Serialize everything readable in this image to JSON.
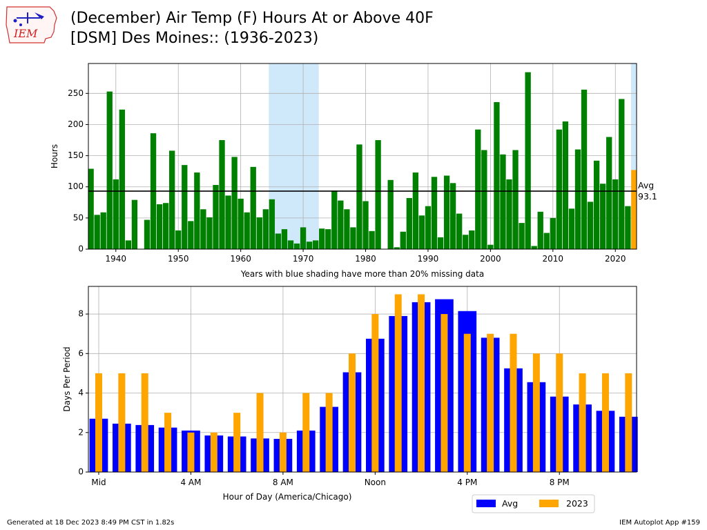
{
  "title_lines": [
    "(December) Air Temp (F) Hours At or Above 40F",
    "[DSM] Des Moines:: (1936-2023)"
  ],
  "logo_text": "IEM",
  "footer_left": "Generated at 18 Dec 2023 8:49 PM CST in 1.82s",
  "footer_right": "IEM Autoplot App #159",
  "colors": {
    "yearly_bar": "#008000",
    "current_year_bar": "#FFA500",
    "missing_shade": "#CFE8FA",
    "avg_line": "#000000",
    "hourly_avg": "#0000FF",
    "hourly_current": "#FFA500",
    "grid": "#b0b0b0"
  },
  "chart_data": [
    {
      "type": "bar",
      "x": [
        1936,
        1937,
        1938,
        1939,
        1940,
        1941,
        1942,
        1943,
        1944,
        1945,
        1946,
        1947,
        1948,
        1949,
        1950,
        1951,
        1952,
        1953,
        1954,
        1955,
        1956,
        1957,
        1958,
        1959,
        1960,
        1961,
        1962,
        1963,
        1964,
        1965,
        1966,
        1967,
        1968,
        1969,
        1970,
        1971,
        1972,
        1973,
        1974,
        1975,
        1976,
        1977,
        1978,
        1979,
        1980,
        1981,
        1982,
        1983,
        1984,
        1985,
        1986,
        1987,
        1988,
        1989,
        1990,
        1991,
        1992,
        1993,
        1994,
        1995,
        1996,
        1997,
        1998,
        1999,
        2000,
        2001,
        2002,
        2003,
        2004,
        2005,
        2006,
        2007,
        2008,
        2009,
        2010,
        2011,
        2012,
        2013,
        2014,
        2015,
        2016,
        2017,
        2018,
        2019,
        2020,
        2021,
        2022,
        2023
      ],
      "values": [
        129,
        55,
        59,
        253,
        112,
        224,
        14,
        79,
        0,
        47,
        186,
        72,
        74,
        158,
        30,
        135,
        45,
        123,
        64,
        51,
        103,
        175,
        86,
        148,
        81,
        59,
        132,
        51,
        64,
        80,
        25,
        32,
        14,
        9,
        35,
        12,
        14,
        33,
        32,
        94,
        78,
        64,
        35,
        168,
        77,
        29,
        175,
        0,
        111,
        3,
        28,
        82,
        123,
        54,
        69,
        116,
        19,
        118,
        106,
        57,
        23,
        30,
        192,
        159,
        7,
        236,
        152,
        112,
        159,
        42,
        284,
        5,
        60,
        26,
        50,
        192,
        205,
        65,
        160,
        256,
        76,
        142,
        105,
        180,
        112,
        241,
        69,
        127
      ],
      "highlight_x": 2023,
      "missing_ranges": [
        [
          1965,
          1972
        ],
        [
          2023,
          2023
        ]
      ],
      "average": 93.1,
      "avg_label": "Avg",
      "avg_value_label": "93.1",
      "ylabel": "Hours",
      "xlabel": "Years with blue shading have more than 20% missing data",
      "ylim": [
        0,
        298
      ],
      "xlim": [
        1935.6,
        2023.4
      ],
      "yticks": [
        0,
        50,
        100,
        150,
        200,
        250
      ],
      "xticks": [
        1940,
        1950,
        1960,
        1970,
        1980,
        1990,
        2000,
        2010,
        2020
      ],
      "grid": true
    },
    {
      "type": "bar",
      "hours": [
        0,
        1,
        2,
        3,
        4,
        5,
        6,
        7,
        8,
        9,
        10,
        11,
        12,
        13,
        14,
        15,
        16,
        17,
        18,
        19,
        20,
        21,
        22,
        23
      ],
      "series": [
        {
          "name": "Avg",
          "values": [
            2.7,
            2.45,
            2.38,
            2.25,
            2.1,
            1.85,
            1.8,
            1.7,
            1.68,
            2.1,
            3.3,
            5.05,
            6.75,
            7.9,
            8.6,
            8.75,
            8.15,
            6.8,
            5.25,
            4.55,
            3.82,
            3.42,
            3.1,
            2.8
          ]
        },
        {
          "name": "2023",
          "values": [
            5,
            5,
            5,
            3,
            2,
            2,
            3,
            4,
            2,
            4,
            4,
            6,
            8,
            9,
            9,
            8,
            7,
            7,
            7,
            6,
            6,
            5,
            5,
            5
          ]
        }
      ],
      "xticks": [
        0,
        4,
        8,
        12,
        16,
        20
      ],
      "xtick_labels": [
        "Mid",
        "4 AM",
        "8 AM",
        "Noon",
        "4 PM",
        "8 PM"
      ],
      "yticks": [
        0,
        2,
        4,
        6,
        8
      ],
      "ylim": [
        0,
        9.4
      ],
      "xlim": [
        -0.45,
        23.35
      ],
      "xlabel": "Hour of Day (America/Chicago)",
      "ylabel": "Days Per Period",
      "legend_position": "below-right",
      "grid": true
    }
  ]
}
